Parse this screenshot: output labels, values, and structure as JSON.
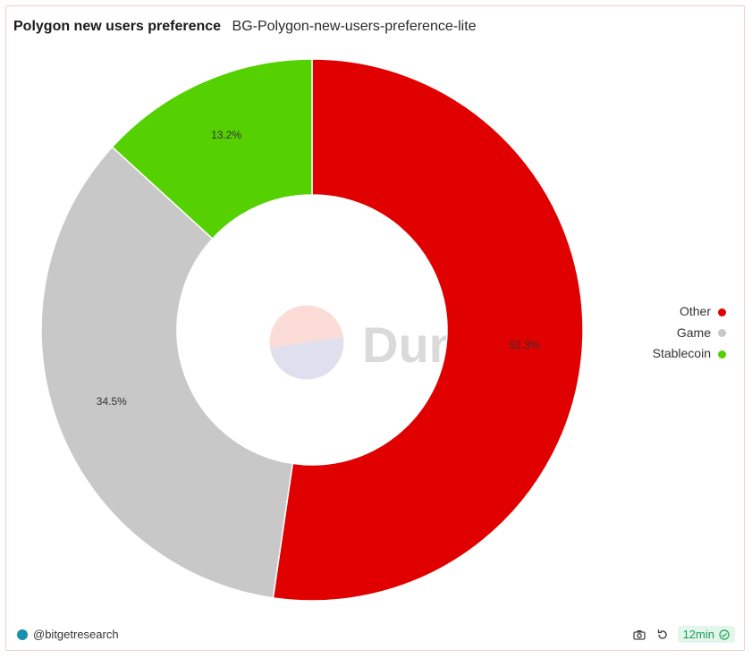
{
  "header": {
    "title": "Polygon new users preference",
    "subtitle": "BG-Polygon-new-users-preference-lite"
  },
  "chart_data": {
    "type": "pie",
    "variant": "donut",
    "slices": [
      {
        "label": "Other",
        "value": 52.3,
        "display": "52.3%",
        "color": "#e00000"
      },
      {
        "label": "Game",
        "value": 34.5,
        "display": "34.5%",
        "color": "#c8c8c8"
      },
      {
        "label": "Stablecoin",
        "value": 13.2,
        "display": "13.2%",
        "color": "#55d000"
      }
    ],
    "legend_position": "right"
  },
  "watermark": {
    "text": "Dune"
  },
  "footer": {
    "author": "@bitgetresearch",
    "author_icon": "avatar-icon",
    "refresh_label": "12min",
    "icons": [
      "camera-icon",
      "refresh-icon",
      "check-circle-icon"
    ]
  }
}
